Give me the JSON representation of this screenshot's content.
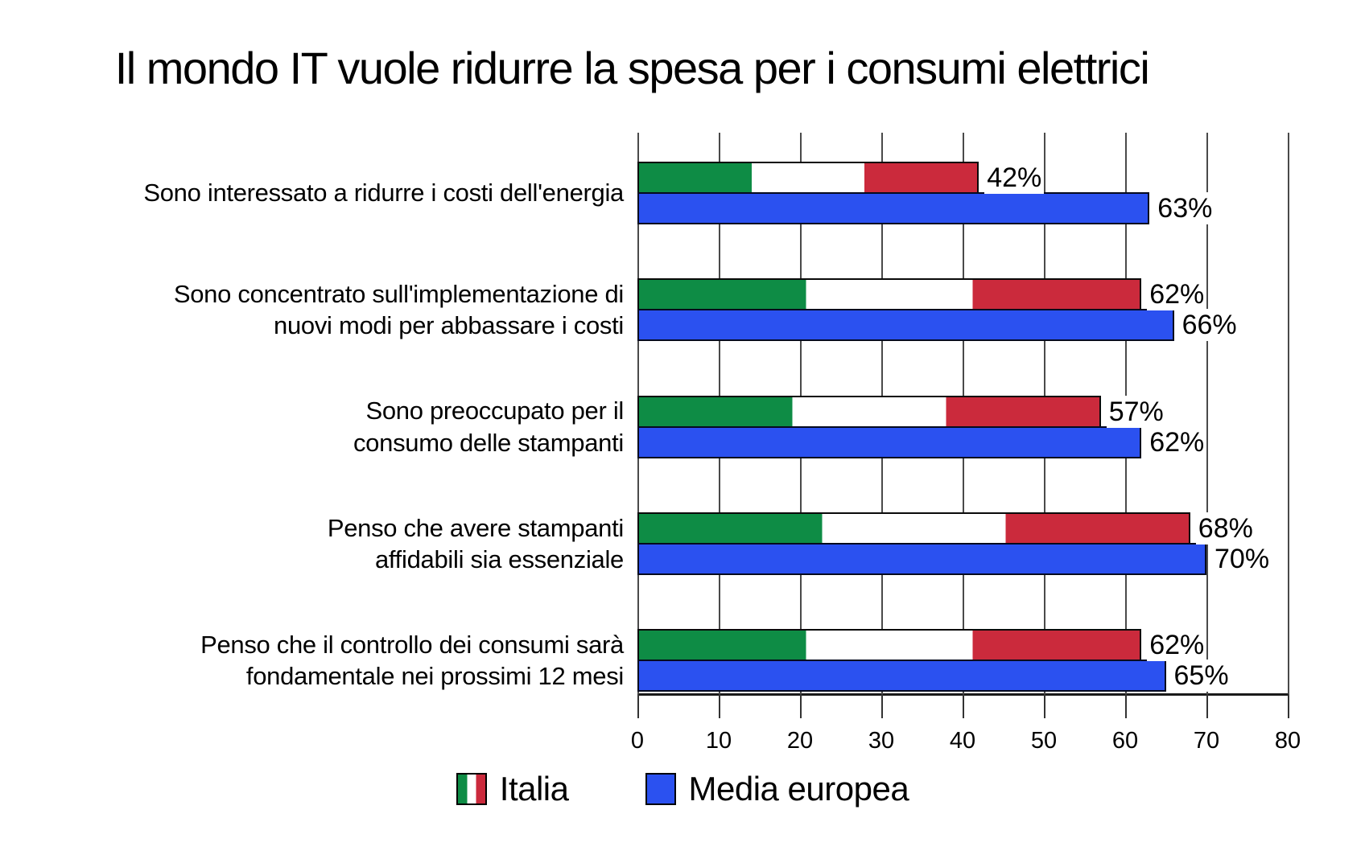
{
  "chart_data": {
    "type": "bar",
    "orientation": "horizontal",
    "title": "Il mondo IT vuole ridurre la spesa per i consumi elettrici",
    "categories": [
      "Sono interessato a ridurre i costi dell'energia",
      "Sono concentrato sull'implementazione di\nnuovi modi per abbassare i costi",
      "Sono preoccupato per il\nconsumo delle stampanti",
      "Penso che avere stampanti\naffidabili sia essenziale",
      "Penso che il controllo dei consumi sarà\nfondamentale nei prossimi 12 mesi"
    ],
    "series": [
      {
        "name": "Italia",
        "swatch": "italian-flag",
        "values": [
          42,
          62,
          57,
          68,
          62
        ]
      },
      {
        "name": "Media europea",
        "swatch": "solid-blue",
        "values": [
          63,
          66,
          62,
          70,
          65
        ]
      }
    ],
    "value_suffix": "%",
    "xlim": [
      0,
      80
    ],
    "xticks": [
      0,
      10,
      20,
      30,
      40,
      50,
      60,
      70,
      80
    ],
    "grid": "vertical",
    "legend_position": "bottom"
  },
  "colors": {
    "flag_green": "#0e8c45",
    "flag_white": "#ffffff",
    "flag_red": "#cb2a3c",
    "media_blue": "#2b51f0",
    "bar_border": "#0a0a0a",
    "gridline": "#4a4a4a",
    "text": "#000000",
    "background": "#ffffff"
  }
}
